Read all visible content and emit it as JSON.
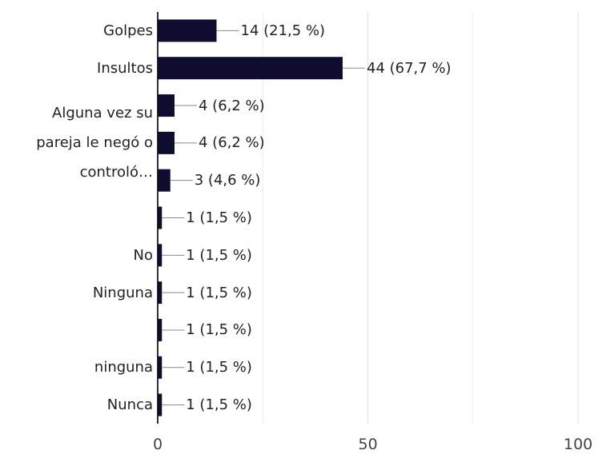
{
  "chart_data": {
    "type": "bar",
    "orientation": "horizontal",
    "categories": [
      "Golpes",
      "Insultos",
      null,
      "Alguna vez su pareja le negó o controló…",
      null,
      null,
      "No",
      "Ninguna",
      null,
      "ninguna",
      "Nunca"
    ],
    "values": [
      14,
      44,
      4,
      4,
      3,
      1,
      1,
      1,
      1,
      1,
      1
    ],
    "value_labels": [
      "14 (21,5 %)",
      "44 (67,7 %)",
      "4 (6,2 %)",
      "4 (6,2 %)",
      "3 (4,6 %)",
      "1 (1,5 %)",
      "1 (1,5 %)",
      "1 (1,5 %)",
      "1 (1,5 %)",
      "1 (1,5 %)",
      "1 (1,5 %)"
    ],
    "color": "#0e0d2f",
    "xlim": [
      0,
      100
    ],
    "xticks": [
      0,
      50,
      100
    ],
    "xminor_grid": [
      25,
      75
    ],
    "grid": true
  }
}
